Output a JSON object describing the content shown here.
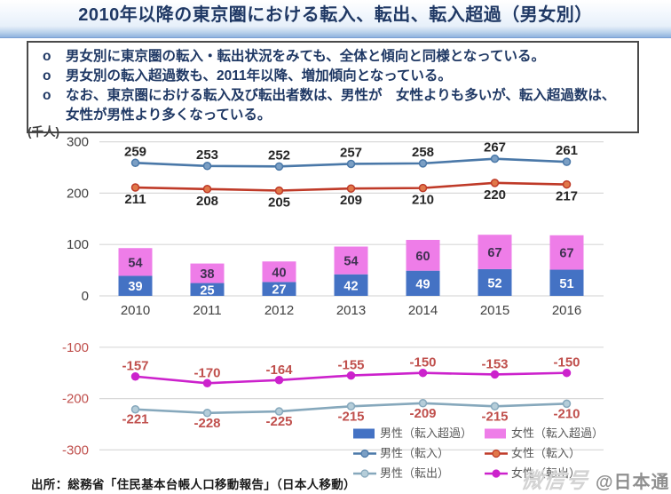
{
  "title": "2010年以降の東京圏における転入、転出、転入超過（男女別）",
  "notes": {
    "bullet_marker": "o",
    "items": [
      "男女別に東京圏の転入・転出状況をみても、全体と傾向と同様となっている。",
      "男女別の転入超過数も、2011年以降、増加傾向となっている。",
      "なお、東京圏における転入及び転出者数は、男性が　女性よりも多いが、転入超過数は、女性が男性より多くなっている。"
    ]
  },
  "unit_label": "(千人)",
  "source": "出所：総務省「住民基本台帳人口移動報告」（日本人移動）",
  "watermark": {
    "stylized": "微信号",
    "account": "@日本通"
  },
  "colors": {
    "title_text": "#1f3864",
    "gridline": "#d9d9d9",
    "axis_label": "#404040",
    "negative_label": "#c0504d",
    "legend_text": "#595959"
  },
  "chart_data": {
    "type": "combo: stacked bar + lines",
    "title": "",
    "xlabel": "",
    "ylabel": "(千人)",
    "ylim": [
      -300,
      300
    ],
    "yticks": [
      300,
      200,
      100,
      0,
      -100,
      -200,
      -300
    ],
    "grid": true,
    "legend_position": "bottom-right",
    "categories": [
      "2010",
      "2011",
      "2012",
      "2013",
      "2014",
      "2015",
      "2016"
    ],
    "series": [
      {
        "name": "男性（転入超過）",
        "type": "bar",
        "color": "#4472c4",
        "label_color": "#ffffff",
        "values": [
          39,
          25,
          27,
          42,
          49,
          52,
          51
        ]
      },
      {
        "name": "女性（転入超過）",
        "type": "bar",
        "color": "#ee7de8",
        "label_color": "#3f3151",
        "values": [
          54,
          38,
          40,
          54,
          60,
          67,
          67
        ]
      },
      {
        "name": "男性（転入）",
        "type": "line",
        "color": "#4a78a8",
        "marker_fill": "#7b9fc4",
        "label_color": "#262626",
        "label_dy": -8,
        "values": [
          259,
          253,
          252,
          257,
          258,
          267,
          261
        ]
      },
      {
        "name": "女性（転入）",
        "type": "line",
        "color": "#bf3a28",
        "marker_fill": "#e0784a",
        "label_color": "#262626",
        "label_dy": 18,
        "values": [
          211,
          208,
          205,
          209,
          210,
          220,
          217
        ]
      },
      {
        "name": "男性（転出）",
        "type": "line",
        "color": "#86a8bc",
        "marker_fill": "#b5cdd9",
        "label_color": "#c0504d",
        "label_dy": 16,
        "values": [
          -221,
          -228,
          -225,
          -215,
          -209,
          -215,
          -210
        ]
      },
      {
        "name": "女性（転出）",
        "type": "line",
        "color": "#cc22cc",
        "marker_fill": "#cc22cc",
        "label_color": "#c0504d",
        "label_dy": -7,
        "values": [
          -157,
          -170,
          -164,
          -155,
          -150,
          -153,
          -150
        ]
      }
    ]
  }
}
